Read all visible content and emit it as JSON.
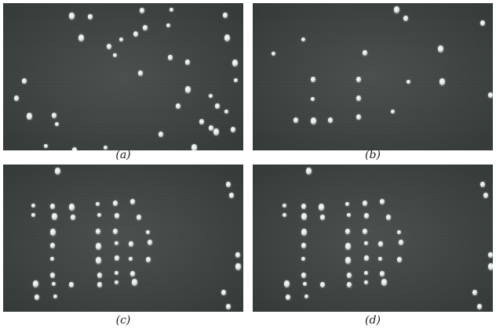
{
  "panels": [
    {
      "id": "a",
      "caption": "(a)"
    },
    {
      "id": "b",
      "caption": "(b)"
    },
    {
      "id": "c",
      "caption": "(c)"
    },
    {
      "id": "d",
      "caption": "(d)"
    }
  ]
}
